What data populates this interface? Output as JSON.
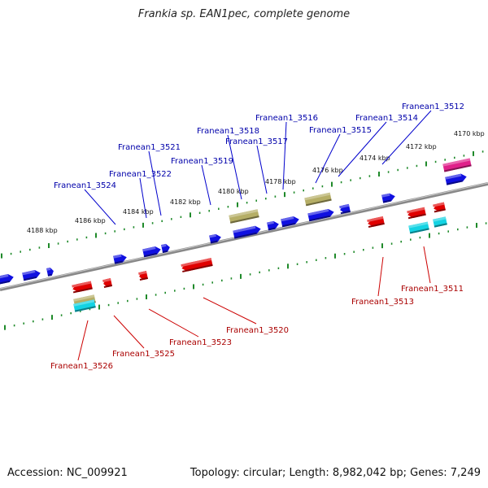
{
  "title": "Frankia sp. EAN1pec, complete genome",
  "footer": {
    "accession": "Accession: NC_009921",
    "summary": "Topology: circular; Length: 8,982,042 bp; Genes: 7,249"
  },
  "colors": {
    "backbone": "#8a8a8a",
    "tick": "#1f8a2a",
    "blue_gene": "#1010e0",
    "red_gene": "#e00000",
    "olive_gene": "#b5ae66",
    "cyan_gene": "#13d3e3",
    "magenta_gene": "#e0208a",
    "label_blue": "#0000aa",
    "label_red": "#aa0000"
  },
  "kbp_labels": [
    "4170 kbp",
    "4172 kbp",
    "4174 kbp",
    "4176 kbp",
    "4178 kbp",
    "4180 kbp",
    "4182 kbp",
    "4184 kbp",
    "4186 kbp",
    "4188 kbp"
  ],
  "top_genes": [
    "Franean1_3512",
    "Franean1_3514",
    "Franean1_3515",
    "Franean1_3516",
    "Franean1_3517",
    "Franean1_3518",
    "Franean1_3519",
    "Franean1_3521",
    "Franean1_3522",
    "Franean1_3524"
  ],
  "bottom_genes": [
    "Franean1_3511",
    "Franean1_3513",
    "Franean1_3520",
    "Franean1_3523",
    "Franean1_3525",
    "Franean1_3526"
  ]
}
